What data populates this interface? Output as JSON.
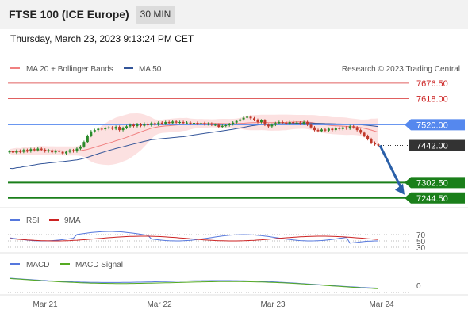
{
  "header": {
    "title": "FTSE 100 (ICE Europe)",
    "timeframe": "30 MIN"
  },
  "datetime": "Thursday, March 23, 2023 9:13:24 PM CET",
  "legend": {
    "ma20": "MA 20 + Bollinger Bands",
    "ma50": "MA 50",
    "credit": "Research © 2023 Trading Central"
  },
  "colors": {
    "red_level": "#e06060",
    "blue_level": "#5588ee",
    "green_level": "#1a7f1a",
    "candle_up": "#2a8a2a",
    "candle_down": "#c0392b",
    "rsi": "#5577dd",
    "rsi_ma": "#cc2222",
    "macd": "#5577dd",
    "macd_signal": "#55aa22",
    "arrow": "#2a5fa8"
  },
  "chart_data": [
    {
      "type": "candlestick",
      "x_ticks": [
        "Mar 21",
        "Mar 22",
        "Mar 23",
        "Mar 24"
      ],
      "ylim": [
        7220,
        7700
      ],
      "levels": [
        {
          "value": 7676.5,
          "label": "7676.50",
          "kind": "resistance",
          "color": "#e06060"
        },
        {
          "value": 7618.0,
          "label": "7618.00",
          "kind": "resistance",
          "color": "#e06060"
        },
        {
          "value": 7520.0,
          "label": "7520.00",
          "kind": "pivot",
          "color": "#5588ee"
        },
        {
          "value": 7442.0,
          "label": "7442.00",
          "kind": "last",
          "color": "#333333"
        },
        {
          "value": 7302.5,
          "label": "7302.50",
          "kind": "support",
          "color": "#1a7f1a"
        },
        {
          "value": 7244.5,
          "label": "7244.50",
          "kind": "support",
          "color": "#1a7f1a"
        }
      ],
      "closes": [
        7420,
        7415,
        7422,
        7418,
        7425,
        7420,
        7428,
        7424,
        7430,
        7426,
        7420,
        7424,
        7416,
        7422,
        7418,
        7412,
        7418,
        7424,
        7420,
        7430,
        7438,
        7455,
        7478,
        7495,
        7500,
        7505,
        7503,
        7508,
        7510,
        7505,
        7512,
        7500,
        7508,
        7514,
        7520,
        7515,
        7522,
        7516,
        7524,
        7518,
        7526,
        7520,
        7528,
        7524,
        7530,
        7526,
        7532,
        7528,
        7530,
        7526,
        7528,
        7524,
        7527,
        7523,
        7526,
        7522,
        7524,
        7520,
        7520,
        7512,
        7516,
        7518,
        7522,
        7528,
        7534,
        7540,
        7546,
        7550,
        7544,
        7538,
        7530,
        7536,
        7520,
        7514,
        7520,
        7526,
        7530,
        7528,
        7524,
        7530,
        7526,
        7528,
        7524,
        7530,
        7520,
        7510,
        7500,
        7496,
        7502,
        7498,
        7505,
        7500,
        7508,
        7504,
        7510,
        7506,
        7514,
        7510,
        7500,
        7490,
        7478,
        7466,
        7452,
        7446,
        7442
      ]
    },
    {
      "type": "line",
      "name": "RSI",
      "series": [
        {
          "name": "RSI"
        },
        {
          "name": "9MA"
        }
      ],
      "y_ticks": [
        "70",
        "50",
        "30"
      ]
    },
    {
      "type": "line",
      "name": "MACD",
      "series": [
        {
          "name": "MACD"
        },
        {
          "name": "MACD Signal"
        }
      ],
      "y_ticks": [
        "0"
      ]
    }
  ]
}
